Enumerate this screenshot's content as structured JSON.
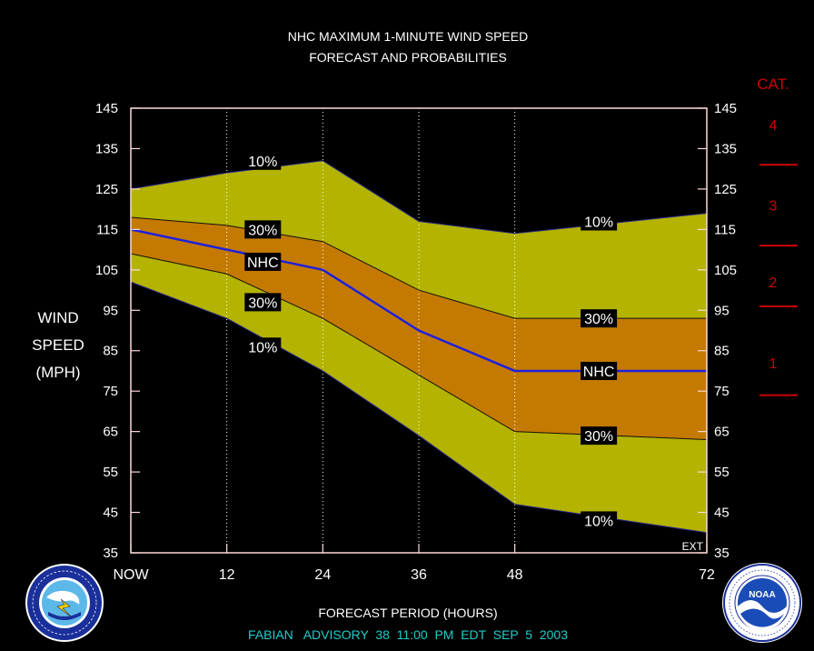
{
  "chart_data": {
    "type": "area",
    "title": "NHC MAXIMUM 1-MINUTE WIND SPEED",
    "subtitle": "FORECAST AND PROBABILITIES",
    "xlabel": "FORECAST PERIOD (HOURS)",
    "ylabel": [
      "WIND",
      "SPEED",
      "(MPH)"
    ],
    "xlim": [
      0,
      72
    ],
    "ylim": [
      35,
      145
    ],
    "x_ticks": [
      {
        "value": 0,
        "label": "NOW"
      },
      {
        "value": 12,
        "label": "12"
      },
      {
        "value": 24,
        "label": "24"
      },
      {
        "value": 36,
        "label": "36"
      },
      {
        "value": 48,
        "label": "48"
      },
      {
        "value": 72,
        "label": "72"
      }
    ],
    "y_ticks": [
      35,
      45,
      55,
      65,
      75,
      85,
      95,
      105,
      115,
      125,
      135,
      145
    ],
    "x": [
      0,
      12,
      24,
      36,
      48,
      72
    ],
    "series": [
      {
        "name": "10%",
        "role": "upper-10",
        "values": [
          125,
          129,
          132,
          117,
          114,
          119
        ]
      },
      {
        "name": "30%",
        "role": "upper-30",
        "values": [
          118,
          116,
          112,
          100,
          93,
          93
        ]
      },
      {
        "name": "NHC",
        "role": "nhc",
        "values": [
          115,
          110,
          105,
          90,
          80,
          80
        ]
      },
      {
        "name": "30%",
        "role": "lower-30",
        "values": [
          109,
          104,
          93,
          79,
          65,
          63
        ]
      },
      {
        "name": "10%",
        "role": "lower-10",
        "values": [
          102,
          93,
          80,
          64,
          47,
          40
        ]
      }
    ],
    "band_labels": [
      {
        "text": "10%",
        "x": 16.5,
        "y": 132
      },
      {
        "text": "30%",
        "x": 16.5,
        "y": 115
      },
      {
        "text": "NHC",
        "x": 16.5,
        "y": 107
      },
      {
        "text": "30%",
        "x": 16.5,
        "y": 97
      },
      {
        "text": "10%",
        "x": 16.5,
        "y": 86
      },
      {
        "text": "10%",
        "x": 58.5,
        "y": 117
      },
      {
        "text": "30%",
        "x": 58.5,
        "y": 93
      },
      {
        "text": "NHC",
        "x": 58.5,
        "y": 80
      },
      {
        "text": "30%",
        "x": 58.5,
        "y": 64
      },
      {
        "text": "10%",
        "x": 58.5,
        "y": 43
      }
    ],
    "ext_label": "EXT",
    "colors": {
      "background": "#000000",
      "band_10": "#b3b300",
      "band_30": "#c47a00",
      "nhc_line": "#2020dd",
      "boundary_line": "#111111",
      "axis": "#ffd9d9",
      "category": "#cc0000",
      "footer": "#22cccc"
    },
    "categories": {
      "title": "CAT.",
      "labels": [
        {
          "text": "4",
          "y": 141
        },
        {
          "text": "3",
          "y": 121
        },
        {
          "text": "2",
          "y": 102
        },
        {
          "text": "1",
          "y": 82
        }
      ],
      "thresholds": [
        131,
        111,
        96,
        74
      ]
    }
  },
  "footer": {
    "advisory": "FABIAN   ADVISORY  38  11:00  PM  EDT  SEP  5  2003"
  },
  "logos": {
    "left": "National Weather Service",
    "right": "NOAA"
  }
}
